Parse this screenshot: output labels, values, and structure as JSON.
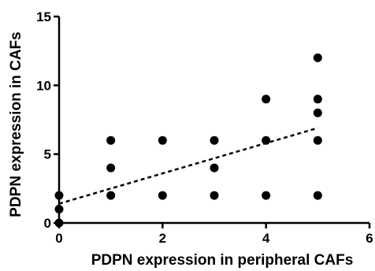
{
  "chart_data": {
    "type": "scatter",
    "xlabel": "PDPN expression in peripheral CAFs",
    "ylabel": "PDPN expression in CAFs",
    "xlim": [
      0,
      6
    ],
    "ylim": [
      0,
      15
    ],
    "x_ticks": [
      0,
      2,
      4,
      6
    ],
    "y_ticks": [
      0,
      5,
      10,
      15
    ],
    "grid": false,
    "points": [
      {
        "x": 0,
        "y": 0
      },
      {
        "x": 0,
        "y": 1
      },
      {
        "x": 0,
        "y": 2
      },
      {
        "x": 1,
        "y": 2
      },
      {
        "x": 1,
        "y": 4
      },
      {
        "x": 1,
        "y": 6
      },
      {
        "x": 2,
        "y": 2
      },
      {
        "x": 2,
        "y": 6
      },
      {
        "x": 3,
        "y": 2
      },
      {
        "x": 3,
        "y": 4
      },
      {
        "x": 3,
        "y": 6
      },
      {
        "x": 4,
        "y": 2
      },
      {
        "x": 4,
        "y": 6
      },
      {
        "x": 4,
        "y": 9
      },
      {
        "x": 5,
        "y": 2
      },
      {
        "x": 5,
        "y": 6
      },
      {
        "x": 5,
        "y": 8
      },
      {
        "x": 5,
        "y": 9
      },
      {
        "x": 5,
        "y": 12
      }
    ],
    "trend_line": {
      "style": "dashed",
      "x": [
        0,
        5
      ],
      "y": [
        1.4,
        6.9
      ]
    },
    "colors": {
      "points": "#000000",
      "axis": "#000000",
      "trend_line": "#000000"
    }
  }
}
